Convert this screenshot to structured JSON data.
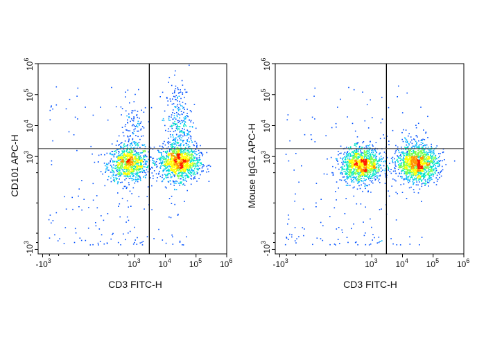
{
  "chart_data": [
    {
      "type": "scatter",
      "subtype": "flow-cytometry-density-plot",
      "xlabel": "CD3 FITC-H",
      "ylabel": "CD101 APC-H",
      "x_scale": "biexponential",
      "y_scale": "biexponential",
      "x_ticks": [
        "-10^3",
        "10^3",
        "10^4",
        "10^5",
        "10^6"
      ],
      "y_ticks": [
        "-10^3",
        "10^3",
        "10^4",
        "10^5",
        "10^6"
      ],
      "gate": {
        "x": 3000,
        "y": 1800
      },
      "populations": [
        {
          "x_center": 600,
          "y_center": 600,
          "relative_size": 0.3
        },
        {
          "x_center": 28000,
          "y_center": 650,
          "relative_size": 0.4
        },
        {
          "x_center": 26000,
          "y_center": 9000,
          "relative_size": 0.12
        },
        {
          "x_center": 800,
          "y_center": 4000,
          "relative_size": 0.06
        }
      ]
    },
    {
      "type": "scatter",
      "subtype": "flow-cytometry-density-plot",
      "xlabel": "CD3 FITC-H",
      "ylabel": "Mouse IgG1 APC-H",
      "x_scale": "biexponential",
      "y_scale": "biexponential",
      "x_ticks": [
        "-10^3",
        "10^3",
        "10^4",
        "10^5",
        "10^6"
      ],
      "y_ticks": [
        "-10^3",
        "10^3",
        "10^4",
        "10^5",
        "10^6"
      ],
      "gate": {
        "x": 3000,
        "y": 1800
      },
      "populations": [
        {
          "x_center": 450,
          "y_center": 550,
          "relative_size": 0.45
        },
        {
          "x_center": 30000,
          "y_center": 600,
          "relative_size": 0.48
        },
        {
          "x_center": 25000,
          "y_center": 2500,
          "relative_size": 0.02
        }
      ]
    }
  ],
  "colors": {
    "density": [
      "#0000cc",
      "#0050ff",
      "#00b4ff",
      "#00e6c8",
      "#7dff50",
      "#ffff00",
      "#ff9600",
      "#ff1e00"
    ]
  }
}
